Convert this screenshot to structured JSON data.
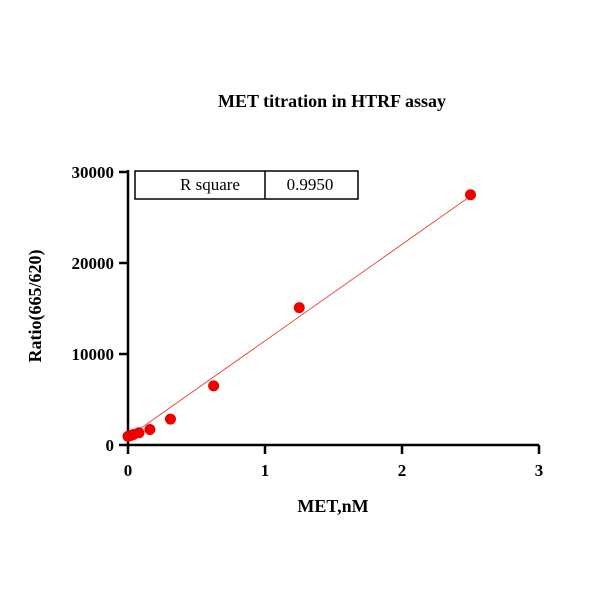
{
  "chart_data": {
    "type": "scatter",
    "title": "MET titration in HTRF assay",
    "xlabel": "MET,nM",
    "ylabel": "Ratio(665/620)",
    "xlim": [
      0,
      3
    ],
    "ylim": [
      0,
      30000
    ],
    "x_ticks": [
      0,
      1,
      2,
      3
    ],
    "y_ticks": [
      0,
      10000,
      20000,
      30000
    ],
    "x_tick_labels": [
      "0",
      "1",
      "2",
      "3"
    ],
    "y_tick_labels": [
      "0",
      "10000",
      "20000",
      "30000"
    ],
    "grid": false,
    "legend": "none",
    "series": [
      {
        "color": "#ee0000",
        "points": [
          {
            "x": 0.0,
            "y": 950
          },
          {
            "x": 0.02,
            "y": 1050
          },
          {
            "x": 0.04,
            "y": 1150
          },
          {
            "x": 0.08,
            "y": 1350
          },
          {
            "x": 0.16,
            "y": 1700
          },
          {
            "x": 0.31,
            "y": 2850
          },
          {
            "x": 0.625,
            "y": 6500
          },
          {
            "x": 1.25,
            "y": 15100
          },
          {
            "x": 2.5,
            "y": 27500
          }
        ]
      }
    ],
    "fit_line": {
      "color": "#e74c3c",
      "slope": 10600,
      "intercept": 850,
      "x_range": [
        0,
        2.5
      ]
    },
    "annotation_table": {
      "label": "R square",
      "value": "0.9950"
    }
  }
}
